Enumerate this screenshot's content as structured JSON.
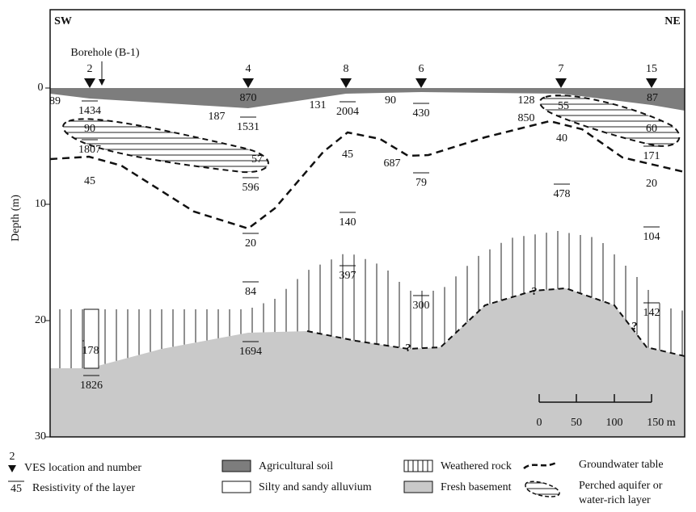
{
  "labels": {
    "sw": "SW",
    "ne": "NE",
    "borehole": "Borehole (B-1)"
  },
  "axis": {
    "label": "Depth (m)",
    "ticks": [
      0,
      10,
      20,
      30
    ]
  },
  "ves": [
    "2",
    "4",
    "8",
    "6",
    "7",
    "15"
  ],
  "resistivity": [
    "89",
    "1434",
    "90",
    "1807",
    "45",
    "870",
    "187",
    "1531",
    "57",
    "596",
    "20",
    "84",
    "1694",
    "131",
    "2004",
    "45",
    "140",
    "397",
    "90",
    "430",
    "687",
    "79",
    "300",
    "128",
    "55",
    "850",
    "40",
    "478",
    "87",
    "60",
    "171",
    "20",
    "104",
    "142",
    "178",
    "1826"
  ],
  "uncertain": [
    "?",
    "?",
    "?"
  ],
  "scale": [
    "0",
    "50",
    "100",
    "150 m"
  ],
  "legend": {
    "ves_number": "2",
    "ves": "VES location and number",
    "res_sample": "45",
    "resistivity": "Resistivity of the layer",
    "soil": "Agricultural soil",
    "alluvium": "Silty and sandy alluvium",
    "weathered": "Weathered rock",
    "basement": "Fresh basement",
    "groundwater": "Groundwater table",
    "perched": [
      "Perched aquifer or",
      "water-rich layer"
    ]
  }
}
